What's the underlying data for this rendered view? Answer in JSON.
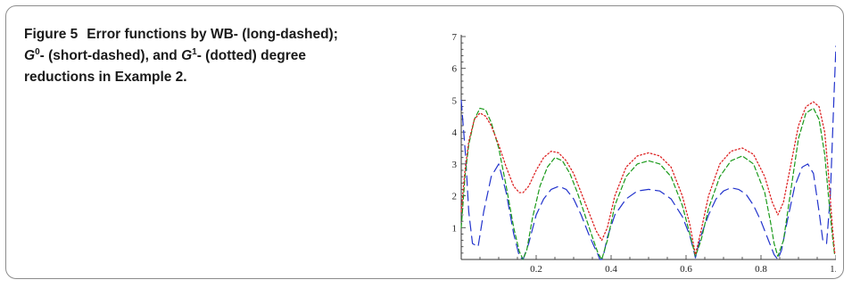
{
  "caption": {
    "label": "Figure 5",
    "line1": "Error functions by WB- (long-dashed);",
    "g0_letter": "G",
    "g0_sup": "0",
    "line2_mid": "- (short-dashed), and ",
    "g1_letter": "G",
    "g1_sup": "1",
    "line2_end": "- (dotted) degree",
    "line3": "reductions in Example 2."
  },
  "chart_data": {
    "type": "line",
    "title": "",
    "xlabel": "",
    "ylabel": "",
    "xlim": [
      0,
      1
    ],
    "ylim": [
      0,
      7
    ],
    "x_ticks": [
      "0.2",
      "0.4",
      "0.6",
      "0.8",
      "1.0"
    ],
    "y_ticks": [
      "1",
      "2",
      "3",
      "4",
      "5",
      "6",
      "7"
    ],
    "series": [
      {
        "style": "long-dashed",
        "color": "#2233cc",
        "x": [
          0.0,
          0.012,
          0.02,
          0.03,
          0.045,
          0.06,
          0.08,
          0.1,
          0.12,
          0.14,
          0.155,
          0.165,
          0.18,
          0.2,
          0.22,
          0.24,
          0.26,
          0.28,
          0.3,
          0.32,
          0.34,
          0.355,
          0.365,
          0.37,
          0.375,
          0.38,
          0.39,
          0.41,
          0.44,
          0.47,
          0.5,
          0.53,
          0.56,
          0.59,
          0.61,
          0.62,
          0.625,
          0.63,
          0.64,
          0.66,
          0.68,
          0.7,
          0.72,
          0.74,
          0.76,
          0.78,
          0.8,
          0.82,
          0.835,
          0.845,
          0.855,
          0.87,
          0.89,
          0.91,
          0.925,
          0.94,
          0.955,
          0.965,
          0.975,
          0.985,
          0.995,
          1.0
        ],
        "y": [
          5.0,
          3.2,
          1.5,
          0.5,
          0.4,
          1.5,
          2.6,
          3.0,
          2.1,
          0.8,
          0.1,
          0.0,
          0.5,
          1.4,
          1.9,
          2.2,
          2.3,
          2.2,
          1.9,
          1.4,
          0.8,
          0.4,
          0.15,
          0.0,
          0.0,
          0.15,
          0.7,
          1.4,
          1.9,
          2.15,
          2.2,
          2.15,
          1.9,
          1.35,
          0.75,
          0.3,
          0.05,
          0.3,
          0.75,
          1.4,
          1.9,
          2.15,
          2.25,
          2.2,
          2.05,
          1.7,
          1.2,
          0.6,
          0.15,
          0.0,
          0.3,
          1.2,
          2.3,
          2.9,
          3.0,
          2.7,
          1.5,
          0.6,
          0.5,
          2.0,
          5.2,
          6.7
        ]
      },
      {
        "style": "short-dashed",
        "color": "#1a9a1a",
        "x": [
          0.0,
          0.01,
          0.02,
          0.035,
          0.05,
          0.065,
          0.08,
          0.1,
          0.12,
          0.14,
          0.155,
          0.165,
          0.175,
          0.19,
          0.21,
          0.23,
          0.25,
          0.27,
          0.29,
          0.31,
          0.33,
          0.35,
          0.365,
          0.375,
          0.39,
          0.41,
          0.44,
          0.47,
          0.5,
          0.53,
          0.56,
          0.59,
          0.61,
          0.625,
          0.64,
          0.66,
          0.69,
          0.72,
          0.75,
          0.78,
          0.81,
          0.825,
          0.835,
          0.845,
          0.86,
          0.88,
          0.9,
          0.92,
          0.94,
          0.955,
          0.97,
          0.98,
          0.99,
          0.997
        ],
        "y": [
          1.0,
          2.6,
          3.6,
          4.4,
          4.75,
          4.7,
          4.3,
          3.5,
          2.3,
          1.0,
          0.25,
          0.0,
          0.3,
          1.3,
          2.3,
          2.9,
          3.2,
          3.1,
          2.7,
          2.1,
          1.4,
          0.7,
          0.2,
          0.0,
          0.6,
          1.7,
          2.6,
          3.0,
          3.1,
          3.0,
          2.6,
          1.7,
          0.8,
          0.1,
          0.6,
          1.6,
          2.6,
          3.1,
          3.25,
          3.0,
          2.1,
          1.2,
          0.5,
          0.1,
          0.6,
          2.2,
          3.8,
          4.6,
          4.75,
          4.4,
          3.3,
          2.0,
          0.8,
          0.1
        ]
      },
      {
        "style": "dotted",
        "color": "#dd2222",
        "x": [
          0.0,
          0.01,
          0.02,
          0.035,
          0.05,
          0.065,
          0.08,
          0.1,
          0.12,
          0.14,
          0.155,
          0.165,
          0.18,
          0.2,
          0.22,
          0.24,
          0.26,
          0.28,
          0.3,
          0.32,
          0.34,
          0.36,
          0.375,
          0.39,
          0.41,
          0.44,
          0.47,
          0.5,
          0.53,
          0.56,
          0.59,
          0.61,
          0.625,
          0.64,
          0.66,
          0.69,
          0.72,
          0.75,
          0.78,
          0.81,
          0.83,
          0.845,
          0.86,
          0.88,
          0.9,
          0.92,
          0.94,
          0.955,
          0.97,
          0.98,
          0.99,
          0.997
        ],
        "y": [
          1.5,
          2.8,
          3.7,
          4.4,
          4.6,
          4.5,
          4.2,
          3.6,
          2.9,
          2.3,
          2.1,
          2.1,
          2.3,
          2.8,
          3.2,
          3.4,
          3.35,
          3.1,
          2.7,
          2.1,
          1.5,
          0.9,
          0.6,
          1.0,
          2.0,
          2.9,
          3.25,
          3.35,
          3.25,
          2.9,
          2.0,
          1.1,
          0.15,
          0.9,
          2.0,
          3.0,
          3.4,
          3.5,
          3.3,
          2.6,
          1.8,
          1.4,
          1.8,
          3.0,
          4.2,
          4.8,
          4.95,
          4.8,
          4.0,
          2.7,
          1.1,
          0.2
        ]
      }
    ]
  }
}
